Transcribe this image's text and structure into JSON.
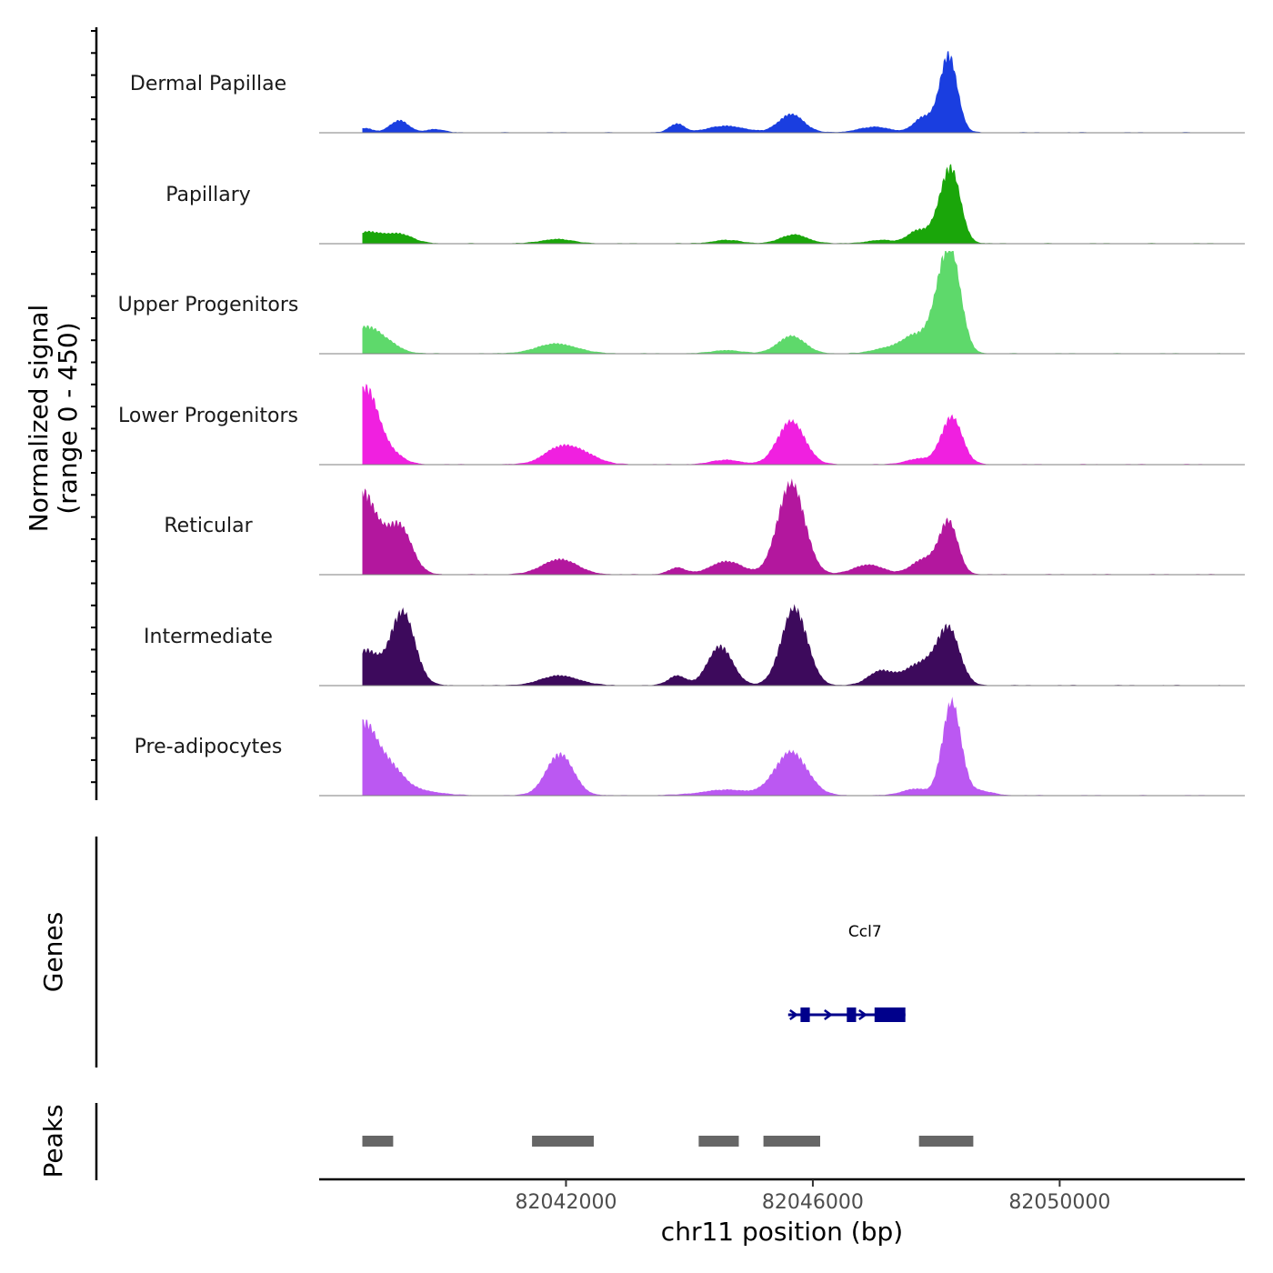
{
  "chart_data": {
    "type": "area",
    "title": "",
    "coverage": {
      "ylabel_line1": "Normalized signal",
      "ylabel_line2": "(range 0 - 450)",
      "ylim": [
        0,
        450
      ],
      "x_range": [
        82038000,
        82053000
      ],
      "tracks": [
        {
          "name": "Dermal Papillae",
          "color": "#1a3ee0",
          "peaks": [
            {
              "x": 82038750,
              "h": 20,
              "w": 120
            },
            {
              "x": 82039300,
              "h": 55,
              "w": 150
            },
            {
              "x": 82039870,
              "h": 15,
              "w": 140
            },
            {
              "x": 82043800,
              "h": 40,
              "w": 120
            },
            {
              "x": 82044600,
              "h": 30,
              "w": 300
            },
            {
              "x": 82045650,
              "h": 85,
              "w": 200
            },
            {
              "x": 82047000,
              "h": 25,
              "w": 260
            },
            {
              "x": 82047800,
              "h": 70,
              "w": 160
            },
            {
              "x": 82048200,
              "h": 360,
              "w": 140
            }
          ]
        },
        {
          "name": "Papillary",
          "color": "#1aa60a",
          "peaks": [
            {
              "x": 82038780,
              "h": 50,
              "w": 200
            },
            {
              "x": 82039280,
              "h": 45,
              "w": 220
            },
            {
              "x": 82041850,
              "h": 20,
              "w": 240
            },
            {
              "x": 82044600,
              "h": 15,
              "w": 220
            },
            {
              "x": 82045700,
              "h": 40,
              "w": 220
            },
            {
              "x": 82047100,
              "h": 15,
              "w": 220
            },
            {
              "x": 82047700,
              "h": 60,
              "w": 160
            },
            {
              "x": 82048050,
              "h": 80,
              "w": 140
            },
            {
              "x": 82048250,
              "h": 320,
              "w": 150
            }
          ]
        },
        {
          "name": "Upper Progenitors",
          "color": "#5ed96b",
          "peaks": [
            {
              "x": 82038750,
              "h": 120,
              "w": 240
            },
            {
              "x": 82039150,
              "h": 30,
              "w": 200
            },
            {
              "x": 82041850,
              "h": 45,
              "w": 320
            },
            {
              "x": 82044600,
              "h": 15,
              "w": 220
            },
            {
              "x": 82045650,
              "h": 80,
              "w": 220
            },
            {
              "x": 82047200,
              "h": 25,
              "w": 220
            },
            {
              "x": 82047650,
              "h": 80,
              "w": 200
            },
            {
              "x": 82048050,
              "h": 180,
              "w": 160
            },
            {
              "x": 82048250,
              "h": 410,
              "w": 160
            }
          ]
        },
        {
          "name": "Lower Progenitors",
          "color": "#f020e0",
          "peaks": [
            {
              "x": 82038750,
              "h": 350,
              "w": 200
            },
            {
              "x": 82039150,
              "h": 50,
              "w": 200
            },
            {
              "x": 82041900,
              "h": 75,
              "w": 260
            },
            {
              "x": 82042300,
              "h": 40,
              "w": 240
            },
            {
              "x": 82044600,
              "h": 20,
              "w": 240
            },
            {
              "x": 82045650,
              "h": 200,
              "w": 220
            },
            {
              "x": 82047700,
              "h": 25,
              "w": 200
            },
            {
              "x": 82048250,
              "h": 220,
              "w": 170
            }
          ]
        },
        {
          "name": "Reticular",
          "color": "#b3179e",
          "peaks": [
            {
              "x": 82038700,
              "h": 380,
              "w": 240
            },
            {
              "x": 82039300,
              "h": 220,
              "w": 200
            },
            {
              "x": 82041900,
              "h": 70,
              "w": 280
            },
            {
              "x": 82043800,
              "h": 30,
              "w": 140
            },
            {
              "x": 82044600,
              "h": 60,
              "w": 260
            },
            {
              "x": 82045650,
              "h": 420,
              "w": 220
            },
            {
              "x": 82046900,
              "h": 45,
              "w": 240
            },
            {
              "x": 82047800,
              "h": 70,
              "w": 200
            },
            {
              "x": 82048200,
              "h": 240,
              "w": 150
            }
          ]
        },
        {
          "name": "Intermediate",
          "color": "#3d0a5c",
          "peaks": [
            {
              "x": 82038750,
              "h": 160,
              "w": 200
            },
            {
              "x": 82039350,
              "h": 340,
              "w": 200
            },
            {
              "x": 82041900,
              "h": 45,
              "w": 300
            },
            {
              "x": 82043800,
              "h": 45,
              "w": 140
            },
            {
              "x": 82044500,
              "h": 180,
              "w": 200
            },
            {
              "x": 82045700,
              "h": 355,
              "w": 210
            },
            {
              "x": 82047100,
              "h": 65,
              "w": 200
            },
            {
              "x": 82047750,
              "h": 100,
              "w": 260
            },
            {
              "x": 82048200,
              "h": 250,
              "w": 180
            }
          ]
        },
        {
          "name": "Pre-adipocytes",
          "color": "#bb58f2",
          "peaks": [
            {
              "x": 82038700,
              "h": 300,
              "w": 200
            },
            {
              "x": 82039100,
              "h": 140,
              "w": 240
            },
            {
              "x": 82039650,
              "h": 20,
              "w": 300
            },
            {
              "x": 82041900,
              "h": 190,
              "w": 220
            },
            {
              "x": 82044600,
              "h": 25,
              "w": 400
            },
            {
              "x": 82045650,
              "h": 200,
              "w": 260
            },
            {
              "x": 82047650,
              "h": 30,
              "w": 200
            },
            {
              "x": 82048250,
              "h": 430,
              "w": 150
            },
            {
              "x": 82048700,
              "h": 20,
              "w": 200
            }
          ]
        }
      ]
    },
    "genes": {
      "ylabel": "Genes",
      "items": [
        {
          "name": "Ccl7",
          "start": 82045600,
          "end": 82047500,
          "strand": "+",
          "exons": [
            [
              82045800,
              82045950
            ],
            [
              82046550,
              82046700
            ],
            [
              82047000,
              82047500
            ]
          ]
        }
      ]
    },
    "peaks": {
      "ylabel": "Peaks",
      "regions": [
        [
          82038700,
          82039200
        ],
        [
          82041450,
          82042450
        ],
        [
          82044150,
          82044800
        ],
        [
          82045200,
          82046120
        ],
        [
          82047720,
          82048600
        ]
      ]
    },
    "x_axis": {
      "xlabel": "chr11 position (bp)",
      "ticks": [
        82042000,
        82046000,
        82050000
      ],
      "tick_labels": [
        "82042000",
        "82046000",
        "82050000"
      ]
    }
  }
}
